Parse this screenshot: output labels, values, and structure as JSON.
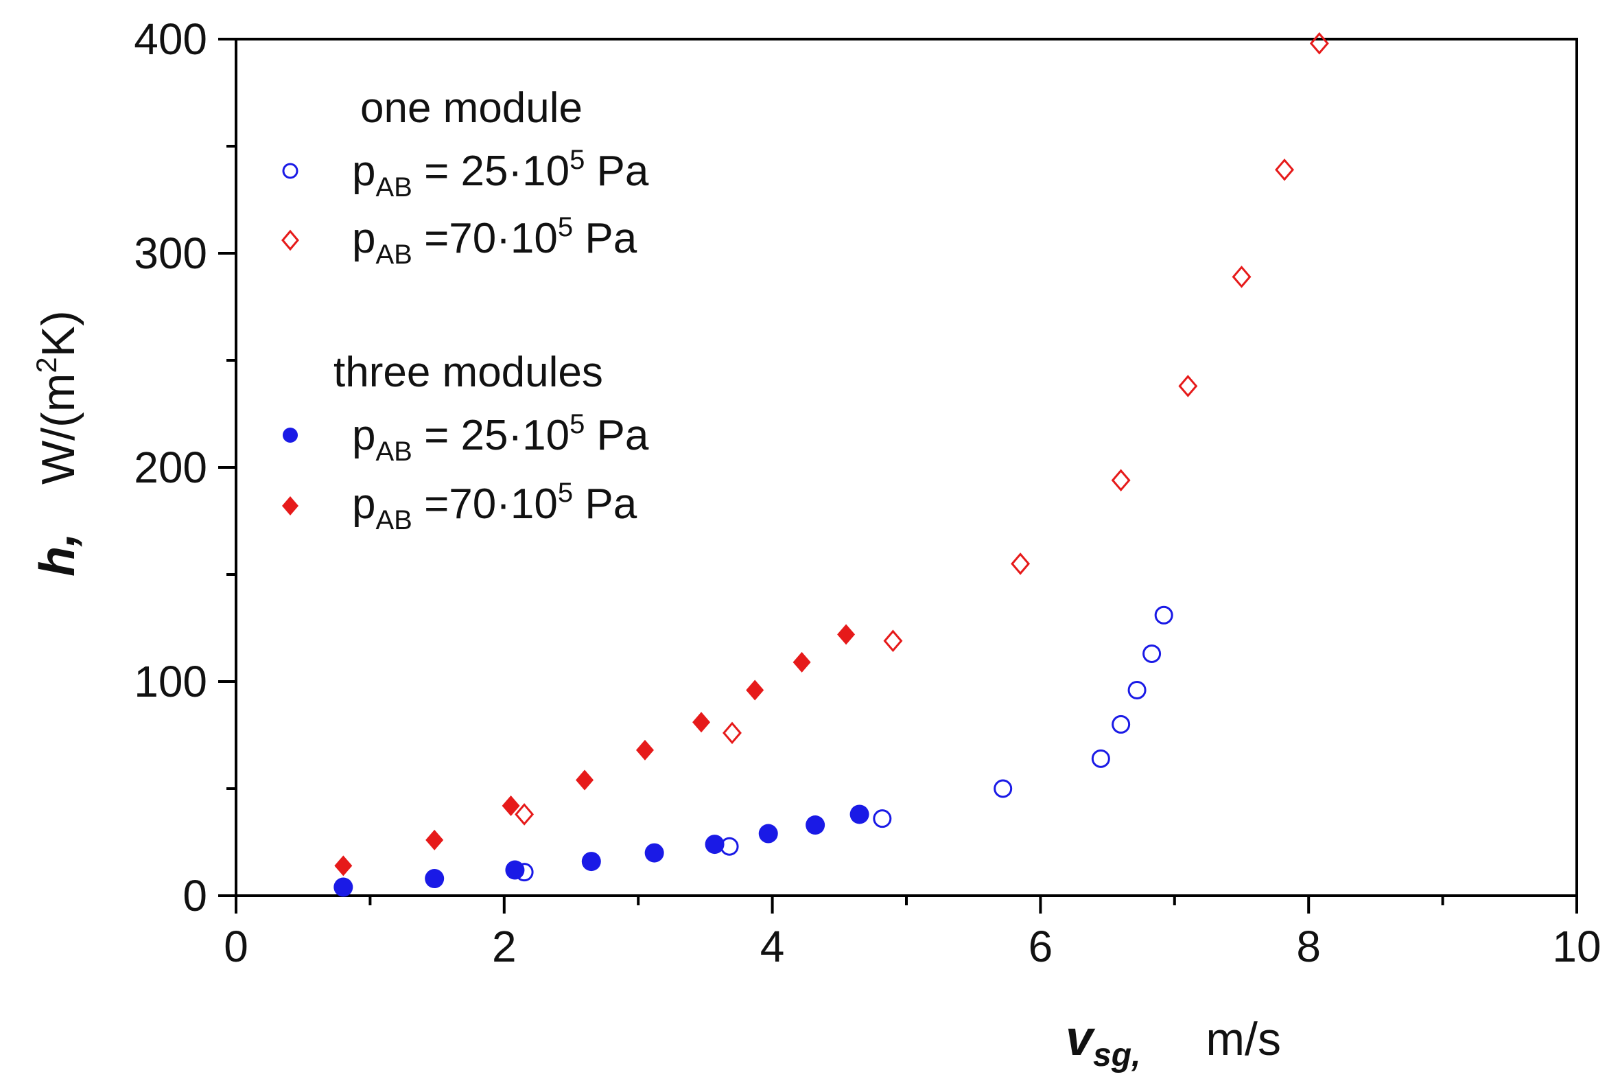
{
  "colors": {
    "blue": "#1a1ae6",
    "red": "#e61a1a",
    "axis": "#000000"
  },
  "chart_data": {
    "type": "scatter",
    "xlabel": {
      "symbol": "v",
      "sub": "sg,",
      "unit": "m/s"
    },
    "ylabel": {
      "symbol": "h,",
      "unit": "W/(m",
      "unit_sup": "2",
      "unit_end": "K)"
    },
    "xlim": [
      0,
      10
    ],
    "ylim": [
      0,
      400
    ],
    "xticks": [
      0,
      2,
      4,
      6,
      8,
      10
    ],
    "yticks": [
      0,
      100,
      200,
      300,
      400
    ],
    "legend": {
      "placement": "top-left",
      "group1_title": "one module",
      "group2_title": "three modules",
      "entries": [
        {
          "p": "p",
          "sub": "AB",
          "eq": " = 25·10",
          "sup": "5",
          "unit": " Pa"
        },
        {
          "p": "p",
          "sub": "AB",
          "eq": " =70·10",
          "sup": "5",
          "unit": " Pa"
        },
        {
          "p": "p",
          "sub": "AB",
          "eq": " = 25·10",
          "sup": "5",
          "unit": " Pa"
        },
        {
          "p": "p",
          "sub": "AB",
          "eq": " =70·10",
          "sup": "5",
          "unit": " Pa"
        }
      ]
    },
    "series": [
      {
        "name": "one module, pAB = 25·10^5 Pa",
        "marker": "circle-open",
        "color": "#1a1ae6",
        "x": [
          2.15,
          3.68,
          4.82,
          5.72,
          6.45,
          6.6,
          6.72,
          6.83,
          6.92
        ],
        "y": [
          11,
          23,
          36,
          50,
          64,
          80,
          96,
          113,
          131
        ]
      },
      {
        "name": "one module, pAB = 70·10^5 Pa",
        "marker": "diamond-open",
        "color": "#e61a1a",
        "x": [
          2.15,
          3.7,
          4.9,
          5.85,
          6.6,
          7.1,
          7.5,
          7.82,
          8.08
        ],
        "y": [
          38,
          76,
          119,
          155,
          194,
          238,
          289,
          339,
          398
        ]
      },
      {
        "name": "three modules, pAB = 25·10^5 Pa",
        "marker": "circle-filled",
        "color": "#1a1ae6",
        "x": [
          0.8,
          1.48,
          2.08,
          2.65,
          3.12,
          3.57,
          3.97,
          4.32,
          4.65
        ],
        "y": [
          4,
          8,
          12,
          16,
          20,
          24,
          29,
          33,
          38
        ]
      },
      {
        "name": "three modules, pAB = 70·10^5 Pa",
        "marker": "diamond-filled",
        "color": "#e61a1a",
        "x": [
          0.8,
          1.48,
          2.05,
          2.6,
          3.05,
          3.47,
          3.87,
          4.22,
          4.55
        ],
        "y": [
          14,
          26,
          42,
          54,
          68,
          81,
          96,
          109,
          122
        ]
      }
    ]
  }
}
